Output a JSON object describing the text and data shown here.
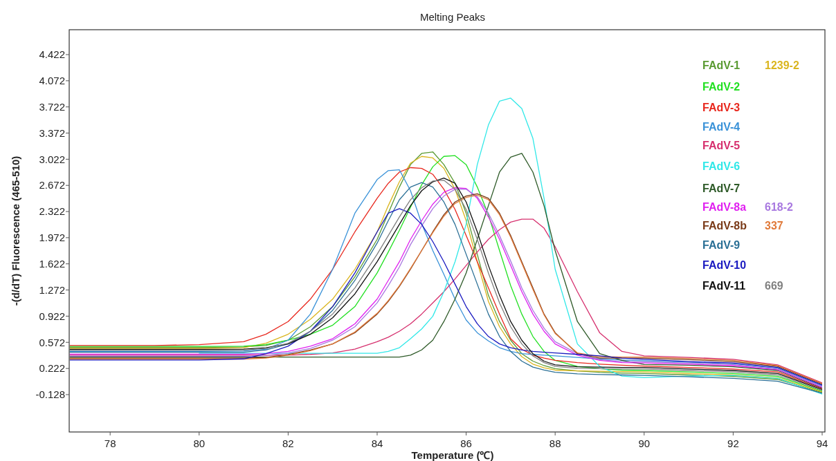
{
  "chart_data": {
    "type": "line",
    "title": "Melting Peaks",
    "xlabel": "Temperature (℃)",
    "ylabel": "-(d/dT) Fluorescence (465-510)",
    "xlim": [
      77.08,
      94
    ],
    "ylim": [
      -0.628,
      4.755
    ],
    "xticks": [
      78,
      80,
      82,
      84,
      86,
      88,
      90,
      92,
      94
    ],
    "yticks": [
      4.422,
      4.072,
      3.722,
      3.372,
      3.022,
      2.672,
      2.322,
      1.972,
      1.622,
      1.272,
      0.922,
      0.572,
      0.222,
      -0.128
    ],
    "grid": false,
    "legend": "top right",
    "marker": "none",
    "line_style": "solid",
    "x": [
      77.1,
      78,
      79,
      80,
      81,
      81.5,
      82,
      82.5,
      83,
      83.5,
      84,
      84.25,
      84.5,
      84.75,
      85,
      85.25,
      85.5,
      85.75,
      86,
      86.25,
      86.5,
      86.75,
      87,
      87.25,
      87.5,
      87.75,
      88,
      88.5,
      89,
      89.5,
      90,
      91,
      92,
      93,
      94
    ],
    "series": [
      {
        "name": "FAdV-1",
        "color": "#5a9a32",
        "values": [
          0.504,
          0.504,
          0.504,
          0.504,
          0.51,
          0.53,
          0.6,
          0.78,
          1.05,
          1.45,
          1.95,
          2.3,
          2.65,
          2.95,
          3.1,
          3.12,
          2.95,
          2.7,
          2.3,
          1.75,
          1.2,
          0.85,
          0.6,
          0.42,
          0.32,
          0.26,
          0.22,
          0.19,
          0.17,
          0.16,
          0.155,
          0.135,
          0.115,
          0.075,
          -0.1
        ]
      },
      {
        "name": "1239-2",
        "color": "#dab51e",
        "values": [
          0.491,
          0.491,
          0.491,
          0.491,
          0.5,
          0.56,
          0.68,
          0.88,
          1.15,
          1.55,
          2.05,
          2.4,
          2.72,
          2.97,
          3.06,
          3.04,
          2.9,
          2.62,
          2.2,
          1.65,
          1.12,
          0.78,
          0.55,
          0.38,
          0.28,
          0.23,
          0.2,
          0.19,
          0.185,
          0.18,
          0.175,
          0.155,
          0.135,
          0.095,
          -0.09
        ]
      },
      {
        "name": "FAdV-2",
        "color": "#22e022",
        "values": [
          0.517,
          0.517,
          0.517,
          0.517,
          0.52,
          0.54,
          0.6,
          0.68,
          0.8,
          1.05,
          1.5,
          1.78,
          2.07,
          2.38,
          2.68,
          2.92,
          3.06,
          3.07,
          2.95,
          2.65,
          2.28,
          1.8,
          1.33,
          0.95,
          0.65,
          0.45,
          0.33,
          0.25,
          0.22,
          0.2,
          0.195,
          0.175,
          0.155,
          0.115,
          -0.08
        ]
      },
      {
        "name": "FAdV-3",
        "color": "#e8281e",
        "values": [
          0.53,
          0.53,
          0.53,
          0.54,
          0.58,
          0.68,
          0.85,
          1.15,
          1.55,
          2.05,
          2.5,
          2.7,
          2.85,
          2.91,
          2.9,
          2.82,
          2.62,
          2.35,
          2.0,
          1.65,
          1.3,
          0.95,
          0.62,
          0.48,
          0.4,
          0.36,
          0.33,
          0.3,
          0.28,
          0.265,
          0.255,
          0.235,
          0.215,
          0.175,
          -0.05
        ]
      },
      {
        "name": "FAdV-4",
        "color": "#3a92d8",
        "values": [
          0.452,
          0.452,
          0.452,
          0.452,
          0.455,
          0.48,
          0.6,
          0.95,
          1.55,
          2.3,
          2.75,
          2.87,
          2.88,
          2.6,
          2.16,
          1.8,
          1.48,
          1.15,
          0.87,
          0.7,
          0.59,
          0.5,
          0.45,
          0.42,
          0.41,
          0.4,
          0.39,
          0.37,
          0.35,
          0.335,
          0.325,
          0.305,
          0.285,
          0.225,
          -0.01
        ]
      },
      {
        "name": "FAdV-5",
        "color": "#d6306e",
        "values": [
          0.4,
          0.4,
          0.4,
          0.4,
          0.4,
          0.4,
          0.4,
          0.41,
          0.43,
          0.48,
          0.58,
          0.64,
          0.72,
          0.82,
          0.95,
          1.1,
          1.25,
          1.42,
          1.6,
          1.78,
          1.95,
          2.08,
          2.18,
          2.22,
          2.22,
          2.1,
          1.85,
          1.25,
          0.7,
          0.45,
          0.39,
          0.37,
          0.345,
          0.27,
          0.03
        ]
      },
      {
        "name": "FAdV-6",
        "color": "#30e8e8",
        "values": [
          null,
          null,
          null,
          0.426,
          0.426,
          0.426,
          0.426,
          0.426,
          0.426,
          0.426,
          0.426,
          0.45,
          0.5,
          0.62,
          0.75,
          0.92,
          1.25,
          1.65,
          2.15,
          2.95,
          3.48,
          3.8,
          3.84,
          3.7,
          3.3,
          2.5,
          1.55,
          0.55,
          0.25,
          0.12,
          0.1,
          0.12,
          0.13,
          0.09,
          -0.12
        ]
      },
      {
        "name": "FAdV-7",
        "color": "#2e5a28",
        "values": [
          0.374,
          0.374,
          0.374,
          0.374,
          0.374,
          0.374,
          0.374,
          0.374,
          0.374,
          0.374,
          0.374,
          0.374,
          0.374,
          0.4,
          0.47,
          0.6,
          0.85,
          1.15,
          1.5,
          1.95,
          2.4,
          2.85,
          3.05,
          3.1,
          2.85,
          2.4,
          1.8,
          0.85,
          0.42,
          0.33,
          0.275,
          0.265,
          0.245,
          0.195,
          -0.04
        ]
      },
      {
        "name": "FAdV-8a",
        "color": "#e020f0",
        "values": [
          0.413,
          0.413,
          0.413,
          0.413,
          0.413,
          0.42,
          0.45,
          0.52,
          0.62,
          0.82,
          1.15,
          1.4,
          1.65,
          1.95,
          2.2,
          2.42,
          2.58,
          2.64,
          2.63,
          2.5,
          2.25,
          1.95,
          1.6,
          1.25,
          0.95,
          0.72,
          0.55,
          0.4,
          0.33,
          0.3,
          0.295,
          0.28,
          0.26,
          0.205,
          -0.03
        ]
      },
      {
        "name": "618-2",
        "color": "#a878e0",
        "values": [
          0.387,
          0.387,
          0.387,
          0.387,
          0.387,
          0.395,
          0.43,
          0.49,
          0.6,
          0.78,
          1.1,
          1.33,
          1.58,
          1.88,
          2.13,
          2.36,
          2.53,
          2.62,
          2.62,
          2.52,
          2.3,
          2.0,
          1.66,
          1.3,
          1.0,
          0.76,
          0.58,
          0.42,
          0.34,
          0.315,
          0.31,
          0.295,
          0.275,
          0.215,
          -0.02
        ]
      },
      {
        "name": "FAdV-8b",
        "color": "#7a3a18",
        "values": [
          0.361,
          0.361,
          0.361,
          0.361,
          0.361,
          0.37,
          0.41,
          0.47,
          0.55,
          0.7,
          0.95,
          1.12,
          1.32,
          1.55,
          1.8,
          2.05,
          2.28,
          2.45,
          2.53,
          2.56,
          2.5,
          2.3,
          2.0,
          1.65,
          1.3,
          0.95,
          0.7,
          0.42,
          0.36,
          0.36,
          0.36,
          0.34,
          0.315,
          0.25,
          0.01
        ]
      },
      {
        "name": "337",
        "color": "#e07a3a",
        "values": [
          0.348,
          0.348,
          0.348,
          0.348,
          0.348,
          0.36,
          0.4,
          0.46,
          0.55,
          0.71,
          0.96,
          1.13,
          1.33,
          1.56,
          1.8,
          2.04,
          2.26,
          2.43,
          2.51,
          2.54,
          2.48,
          2.28,
          1.98,
          1.63,
          1.28,
          0.94,
          0.69,
          0.43,
          0.38,
          0.375,
          0.375,
          0.355,
          0.33,
          0.26,
          0.02
        ]
      },
      {
        "name": "FAdV-9",
        "color": "#2a6f95",
        "values": [
          0.439,
          0.439,
          0.439,
          0.439,
          0.44,
          0.47,
          0.55,
          0.72,
          1.0,
          1.4,
          1.9,
          2.2,
          2.48,
          2.65,
          2.71,
          2.65,
          2.45,
          2.15,
          1.75,
          1.35,
          0.95,
          0.65,
          0.45,
          0.32,
          0.24,
          0.2,
          0.17,
          0.15,
          0.14,
          0.135,
          0.13,
          0.11,
          0.09,
          0.05,
          -0.11
        ]
      },
      {
        "name": "FAdV-10",
        "color": "#1a1ac0",
        "values": [
          0.335,
          0.335,
          0.335,
          0.335,
          0.35,
          0.42,
          0.52,
          0.72,
          1.05,
          1.5,
          2.05,
          2.3,
          2.36,
          2.3,
          2.15,
          1.92,
          1.65,
          1.35,
          1.05,
          0.82,
          0.65,
          0.55,
          0.5,
          0.47,
          0.45,
          0.44,
          0.43,
          0.41,
          0.39,
          0.36,
          0.345,
          0.315,
          0.295,
          0.235,
          0
        ]
      },
      {
        "name": "FAdV-11",
        "color": "#111111",
        "values": [
          0.478,
          0.478,
          0.478,
          0.478,
          0.48,
          0.5,
          0.55,
          0.68,
          0.9,
          1.22,
          1.65,
          1.9,
          2.15,
          2.4,
          2.6,
          2.72,
          2.77,
          2.7,
          2.45,
          2.05,
          1.6,
          1.2,
          0.85,
          0.6,
          0.42,
          0.32,
          0.27,
          0.245,
          0.24,
          0.235,
          0.235,
          0.215,
          0.195,
          0.155,
          -0.06
        ]
      },
      {
        "name": "669",
        "color": "#808080",
        "values": [
          0.465,
          0.465,
          0.465,
          0.465,
          0.47,
          0.49,
          0.56,
          0.72,
          0.95,
          1.3,
          1.75,
          2.0,
          2.25,
          2.48,
          2.64,
          2.73,
          2.74,
          2.62,
          2.35,
          1.95,
          1.5,
          1.1,
          0.78,
          0.55,
          0.39,
          0.3,
          0.25,
          0.225,
          0.22,
          0.215,
          0.215,
          0.195,
          0.175,
          0.135,
          -0.07
        ]
      }
    ]
  }
}
